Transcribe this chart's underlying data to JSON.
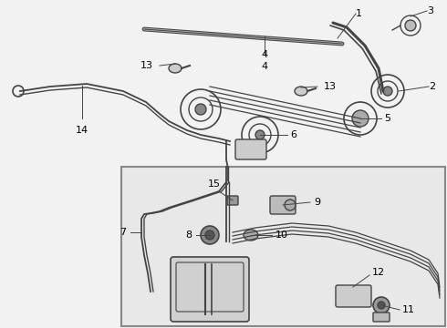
{
  "bg_color": "#f2f2f2",
  "upper_bg": "#ffffff",
  "lower_bg": "#e0e0e0",
  "line_color": "#444444",
  "label_color": "#000000",
  "leader_color": "#444444",
  "box_bg": "#e8e8e8",
  "box_border": "#888888"
}
